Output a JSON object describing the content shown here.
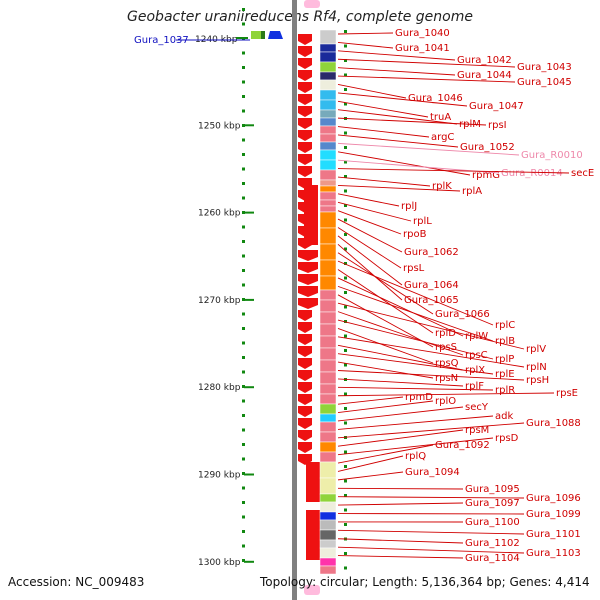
{
  "title": "Geobacter uraniireducens Rf4, complete genome",
  "footer": {
    "accession": "Accession: NC_009483",
    "topology": "Topology: circular; Length: 5,136,364 bp; Genes: 4,414"
  },
  "colors": {
    "label": "#d00000",
    "rna_label": "#ee88aa",
    "scale": "#118811",
    "top_gene": "#1010c0",
    "gene_arrow": "#ee1111",
    "backbone": "#808080"
  },
  "scale": {
    "top_label": "1240 kbp",
    "ticks": [
      {
        "label": "1250 kbp",
        "kbp": 1250
      },
      {
        "label": "1260 kbp",
        "kbp": 1260
      },
      {
        "label": "1270 kbp",
        "kbp": 1270
      },
      {
        "label": "1280 kbp",
        "kbp": 1280
      },
      {
        "label": "1290 kbp",
        "kbp": 1290
      },
      {
        "label": "1300 kbp",
        "kbp": 1300
      }
    ]
  },
  "top_gene": "Gura_1037",
  "genes": [
    {
      "label": "Gura_1040",
      "rna": false
    },
    {
      "label": "Gura_1041",
      "rna": false
    },
    {
      "label": "Gura_1042",
      "rna": false
    },
    {
      "label": "Gura_1043",
      "rna": false
    },
    {
      "label": "Gura_1044",
      "rna": false
    },
    {
      "label": "Gura_1045",
      "rna": false
    },
    {
      "label": "Gura_1046",
      "rna": false
    },
    {
      "label": "Gura_1047",
      "rna": false
    },
    {
      "label": "truA",
      "rna": false
    },
    {
      "label": "rplM",
      "rna": false
    },
    {
      "label": "rpsI",
      "rna": false
    },
    {
      "label": "argC",
      "rna": false
    },
    {
      "label": "Gura_1052",
      "rna": false
    },
    {
      "label": "Gura_R0010",
      "rna": true
    },
    {
      "label": "rpmG",
      "rna": false
    },
    {
      "label": "Gura_R0014",
      "rna": true
    },
    {
      "label": "secE",
      "rna": false
    },
    {
      "label": "rplK",
      "rna": false
    },
    {
      "label": "rplA",
      "rna": false
    },
    {
      "label": "rplJ",
      "rna": false
    },
    {
      "label": "rplL",
      "rna": false
    },
    {
      "label": "rpoB",
      "rna": false
    },
    {
      "label": "Gura_1062",
      "rna": false
    },
    {
      "label": "rpsL",
      "rna": false
    },
    {
      "label": "Gura_1064",
      "rna": false
    },
    {
      "label": "Gura_1065",
      "rna": false
    },
    {
      "label": "Gura_1066",
      "rna": false
    },
    {
      "label": "rplC",
      "rna": false
    },
    {
      "label": "rplD",
      "rna": false
    },
    {
      "label": "rplW",
      "rna": false
    },
    {
      "label": "rplB",
      "rna": false
    },
    {
      "label": "rpsS",
      "rna": false
    },
    {
      "label": "rplV",
      "rna": false
    },
    {
      "label": "rpsC",
      "rna": false
    },
    {
      "label": "rplP",
      "rna": false
    },
    {
      "label": "rpsQ",
      "rna": false
    },
    {
      "label": "rplN",
      "rna": false
    },
    {
      "label": "rplX",
      "rna": false
    },
    {
      "label": "rplE",
      "rna": false
    },
    {
      "label": "rpsN",
      "rna": false
    },
    {
      "label": "rpsH",
      "rna": false
    },
    {
      "label": "rplF",
      "rna": false
    },
    {
      "label": "rplR",
      "rna": false
    },
    {
      "label": "rpsE",
      "rna": false
    },
    {
      "label": "rpmD",
      "rna": false
    },
    {
      "label": "rplO",
      "rna": false
    },
    {
      "label": "secY",
      "rna": false
    },
    {
      "label": "adk",
      "rna": false
    },
    {
      "label": "Gura_1088",
      "rna": false
    },
    {
      "label": "rpsM",
      "rna": false
    },
    {
      "label": "rpsD",
      "rna": false
    },
    {
      "label": "Gura_1092",
      "rna": false
    },
    {
      "label": "rplQ",
      "rna": false
    },
    {
      "label": "Gura_1094",
      "rna": false
    },
    {
      "label": "Gura_1095",
      "rna": false
    },
    {
      "label": "Gura_1096",
      "rna": false
    },
    {
      "label": "Gura_1097",
      "rna": false
    },
    {
      "label": "Gura_1099",
      "rna": false
    },
    {
      "label": "Gura_1100",
      "rna": false
    },
    {
      "label": "Gura_1101",
      "rna": false
    },
    {
      "label": "Gura_1102",
      "rna": false
    },
    {
      "label": "Gura_1103",
      "rna": false
    },
    {
      "label": "Gura_1104",
      "rna": false
    }
  ]
}
